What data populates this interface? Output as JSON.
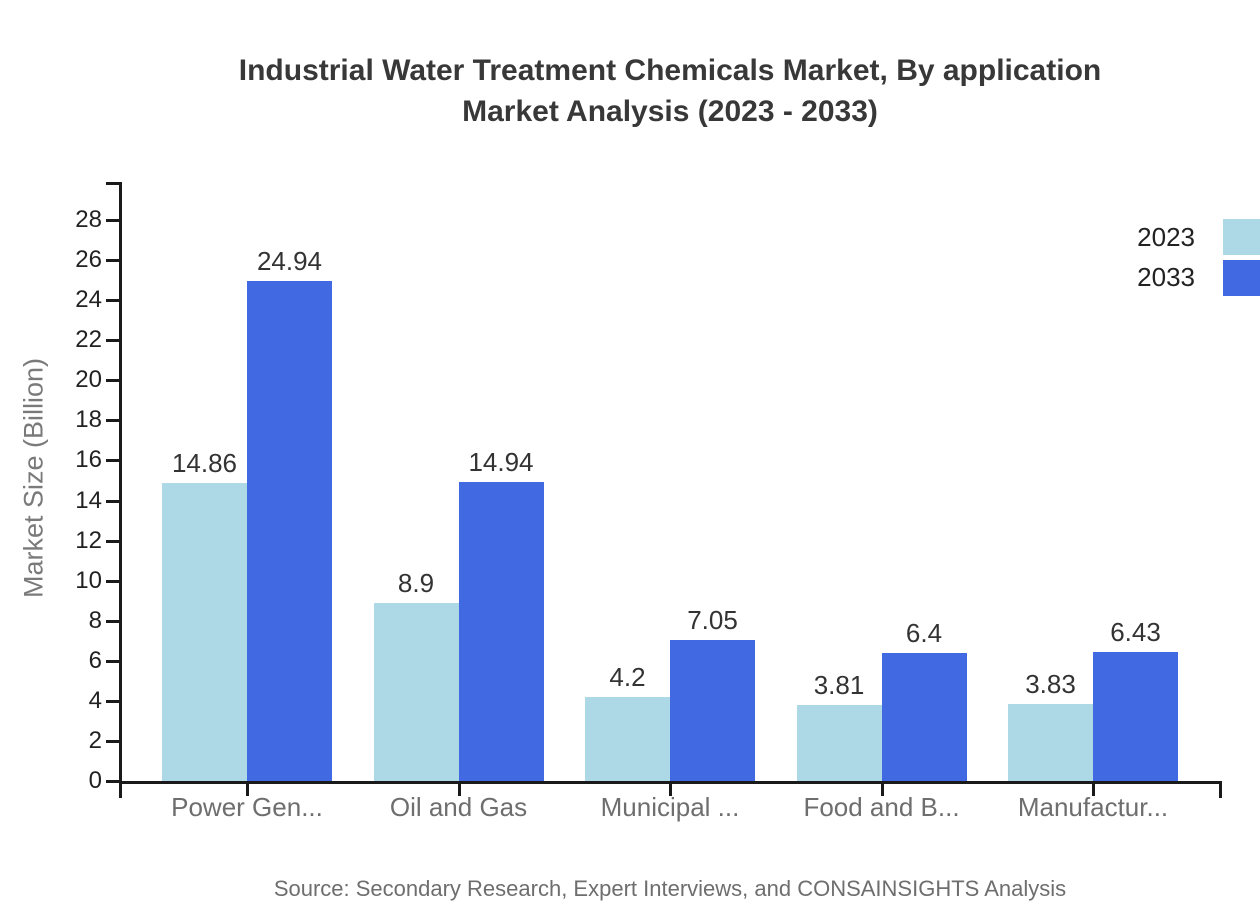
{
  "title": {
    "line1": "Industrial Water Treatment Chemicals Market, By application",
    "line2": "Market Analysis (2023 - 2033)"
  },
  "source": "Source: Secondary Research, Expert Interviews, and CONSAINSIGHTS Analysis",
  "colors": {
    "series_2023": "#ADD8E6",
    "series_2033": "#4169E1",
    "axis": "#1a1a1a",
    "title_text": "#383838",
    "tick_text": "#222222",
    "category_text": "#6e6e6e",
    "value_text": "#333333",
    "source_text": "#6e6e6e"
  },
  "legend": {
    "items": [
      {
        "label": "2023",
        "color": "#ADD8E6"
      },
      {
        "label": "2033",
        "color": "#4169E1"
      }
    ]
  },
  "chart_data": {
    "type": "bar",
    "title": "Industrial Water Treatment Chemicals Market, By application Market Analysis (2023 - 2033)",
    "xlabel": "",
    "ylabel": "Market Size (Billion)",
    "categories": [
      "Power Gen...",
      "Oil and Gas",
      "Municipal ...",
      "Food and B...",
      "Manufactur..."
    ],
    "series": [
      {
        "name": "2023",
        "color": "#ADD8E6",
        "values": [
          14.86,
          8.9,
          4.2,
          3.81,
          3.83
        ]
      },
      {
        "name": "2033",
        "color": "#4169E1",
        "values": [
          24.94,
          14.94,
          7.05,
          6.4,
          6.43
        ]
      }
    ],
    "ylim": [
      0,
      29
    ],
    "yticks": [
      0,
      2,
      4,
      6,
      8,
      10,
      12,
      14,
      16,
      18,
      20,
      22,
      24,
      26,
      28
    ],
    "grid": false,
    "legend_position": "top-right"
  }
}
